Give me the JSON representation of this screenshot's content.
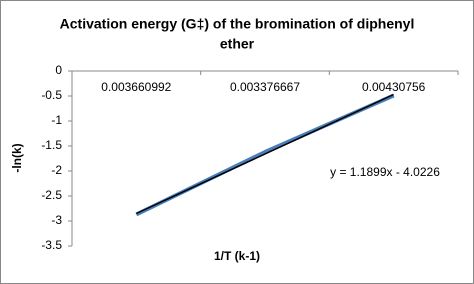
{
  "chart_data": {
    "type": "line",
    "title": "Activation energy (G‡) of the bromination of diphenyl ether",
    "x_label": "1/T (k-1)",
    "y_label": "-ln(k)",
    "categories": [
      "0.003660992",
      "0.003376667",
      "0.00430756"
    ],
    "series": [
      {
        "color": "#4a7ebb",
        "values": [
          -2.87,
          -1.62,
          -0.49
        ]
      }
    ],
    "trendline": {
      "equation": "y = 1.1899x - 4.0226",
      "color": "#000000"
    },
    "ylim": [
      -3.5,
      0
    ],
    "yticks": [
      -3.5,
      -3,
      -2.5,
      -2,
      -1.5,
      -1,
      -0.5,
      0
    ],
    "grid": false
  }
}
